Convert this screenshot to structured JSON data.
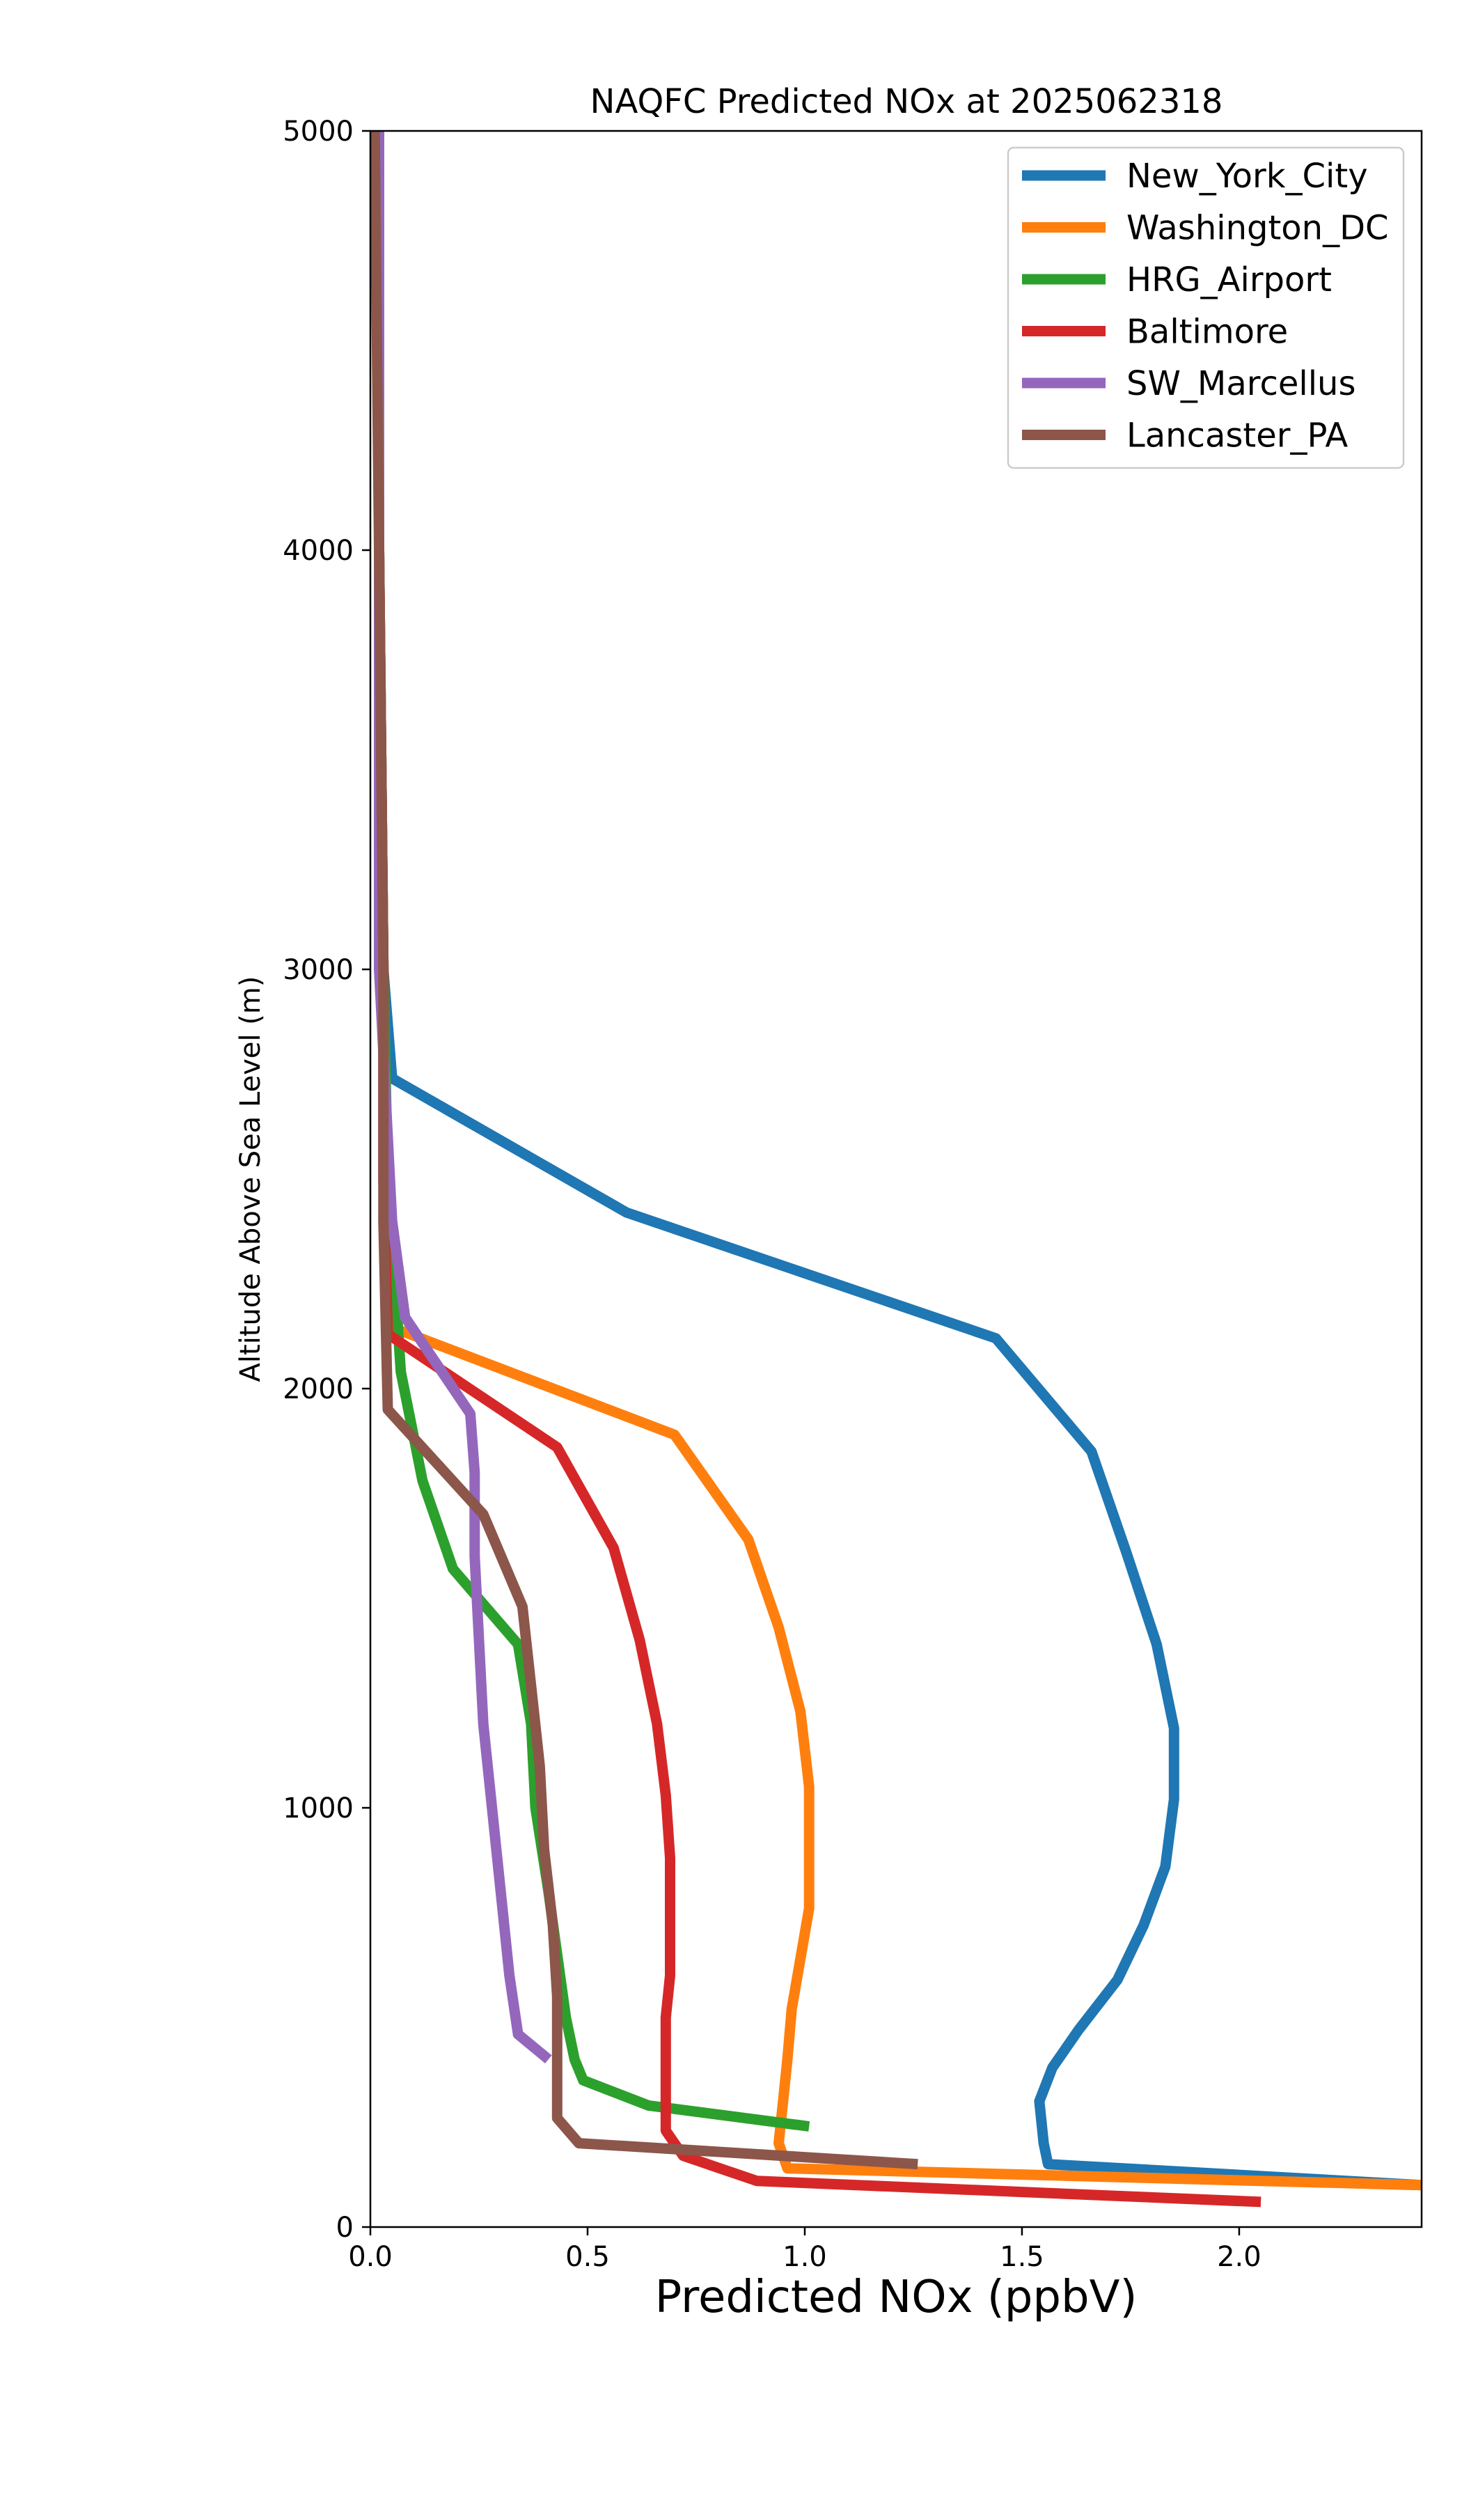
{
  "chart_data": {
    "type": "line",
    "title": "NAQFC Predicted NOx at 2025062318",
    "xlabel": "Predicted NOx (ppbV)",
    "ylabel": "Altitude Above Sea Level (m)",
    "xlim": [
      0,
      2.42
    ],
    "ylim": [
      0,
      5000
    ],
    "x_ticks": [
      0.0,
      0.5,
      1.0,
      1.5,
      2.0
    ],
    "x_tick_labels": [
      "0.0",
      "0.5",
      "1.0",
      "1.5",
      "2.0"
    ],
    "y_ticks": [
      0,
      1000,
      2000,
      3000,
      4000,
      5000
    ],
    "y_tick_labels": [
      "0",
      "1000",
      "2000",
      "3000",
      "4000",
      "5000"
    ],
    "grid": false,
    "legend_position": "top-right",
    "series": [
      {
        "name": "New_York_City",
        "color": "#1f77b4",
        "points": [
          [
            2.42,
            100
          ],
          [
            1.56,
            150
          ],
          [
            1.55,
            200
          ],
          [
            1.54,
            300
          ],
          [
            1.57,
            380
          ],
          [
            1.63,
            470
          ],
          [
            1.72,
            590
          ],
          [
            1.78,
            720
          ],
          [
            1.83,
            860
          ],
          [
            1.85,
            1020
          ],
          [
            1.85,
            1190
          ],
          [
            1.81,
            1390
          ],
          [
            1.74,
            1610
          ],
          [
            1.66,
            1850
          ],
          [
            1.44,
            2120
          ],
          [
            0.59,
            2420
          ],
          [
            0.05,
            2740
          ],
          [
            0.03,
            3000
          ],
          [
            0.02,
            4000
          ],
          [
            0.02,
            5000
          ]
        ]
      },
      {
        "name": "Washington_DC",
        "color": "#ff7f0e",
        "points": [
          [
            2.42,
            100
          ],
          [
            0.96,
            140
          ],
          [
            0.94,
            200
          ],
          [
            0.95,
            300
          ],
          [
            0.96,
            400
          ],
          [
            0.97,
            520
          ],
          [
            0.99,
            640
          ],
          [
            1.01,
            760
          ],
          [
            1.01,
            900
          ],
          [
            1.01,
            1050
          ],
          [
            0.99,
            1230
          ],
          [
            0.94,
            1430
          ],
          [
            0.87,
            1640
          ],
          [
            0.7,
            1890
          ],
          [
            0.04,
            2150
          ],
          [
            0.03,
            3000
          ],
          [
            0.02,
            4000
          ],
          [
            0.02,
            5000
          ]
        ]
      },
      {
        "name": "HRG_Airport",
        "color": "#2ca02c",
        "points": [
          [
            1.01,
            240
          ],
          [
            0.64,
            290
          ],
          [
            0.49,
            350
          ],
          [
            0.47,
            400
          ],
          [
            0.45,
            500
          ],
          [
            0.43,
            650
          ],
          [
            0.41,
            800
          ],
          [
            0.38,
            1000
          ],
          [
            0.37,
            1200
          ],
          [
            0.34,
            1390
          ],
          [
            0.19,
            1570
          ],
          [
            0.12,
            1780
          ],
          [
            0.07,
            2040
          ],
          [
            0.06,
            2200
          ],
          [
            0.04,
            2500
          ],
          [
            0.03,
            3000
          ],
          [
            0.02,
            4000
          ],
          [
            0.02,
            5000
          ]
        ]
      },
      {
        "name": "Baltimore",
        "color": "#d62728",
        "points": [
          [
            2.05,
            60
          ],
          [
            0.89,
            110
          ],
          [
            0.72,
            170
          ],
          [
            0.68,
            230
          ],
          [
            0.68,
            300
          ],
          [
            0.68,
            400
          ],
          [
            0.68,
            500
          ],
          [
            0.69,
            600
          ],
          [
            0.69,
            740
          ],
          [
            0.69,
            880
          ],
          [
            0.68,
            1030
          ],
          [
            0.66,
            1200
          ],
          [
            0.62,
            1400
          ],
          [
            0.56,
            1620
          ],
          [
            0.43,
            1860
          ],
          [
            0.04,
            2130
          ],
          [
            0.03,
            2500
          ],
          [
            0.03,
            3000
          ],
          [
            0.02,
            4000
          ],
          [
            0.02,
            5000
          ]
        ]
      },
      {
        "name": "SW_Marcellus",
        "color": "#9467bd",
        "points": [
          [
            0.41,
            400
          ],
          [
            0.34,
            460
          ],
          [
            0.32,
            600
          ],
          [
            0.3,
            800
          ],
          [
            0.28,
            1000
          ],
          [
            0.26,
            1200
          ],
          [
            0.25,
            1400
          ],
          [
            0.24,
            1600
          ],
          [
            0.24,
            1800
          ],
          [
            0.23,
            1940
          ],
          [
            0.08,
            2170
          ],
          [
            0.05,
            2400
          ],
          [
            0.02,
            3000
          ],
          [
            0.02,
            4000
          ],
          [
            0.02,
            5000
          ]
        ]
      },
      {
        "name": "Lancaster_PA",
        "color": "#8c564b",
        "points": [
          [
            1.26,
            150
          ],
          [
            0.48,
            200
          ],
          [
            0.43,
            260
          ],
          [
            0.43,
            400
          ],
          [
            0.43,
            550
          ],
          [
            0.42,
            720
          ],
          [
            0.4,
            900
          ],
          [
            0.39,
            1100
          ],
          [
            0.37,
            1290
          ],
          [
            0.35,
            1480
          ],
          [
            0.26,
            1700
          ],
          [
            0.04,
            1950
          ],
          [
            0.03,
            2400
          ],
          [
            0.03,
            3000
          ],
          [
            0.02,
            4000
          ],
          [
            0.01,
            5000
          ]
        ]
      }
    ]
  }
}
